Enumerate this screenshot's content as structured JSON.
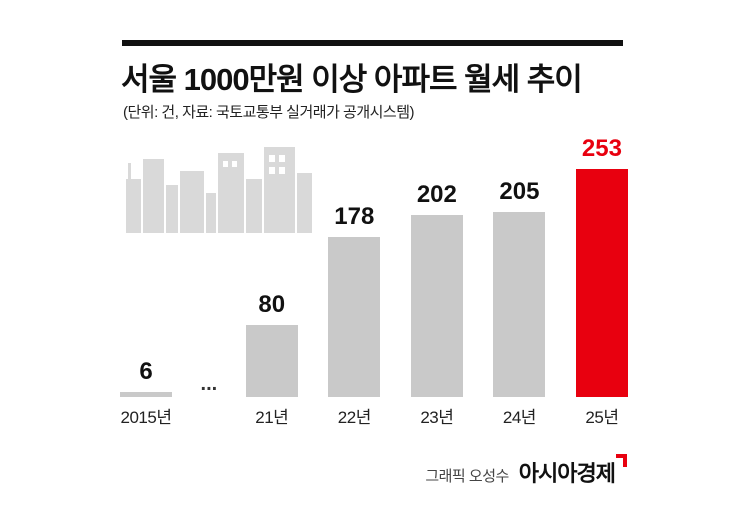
{
  "header": {
    "title": "서울 1000만원 이상 아파트 월세 추이",
    "subtitle": "(단위: 건, 자료: 국토교통부 실거래가 공개시스템)"
  },
  "footer": {
    "credit": "그래픽 오성수",
    "brand": "아시아경제"
  },
  "colors": {
    "bar": "#c9c9c9",
    "highlight": "#e8000f",
    "skyline": "#d9d9d9"
  },
  "chart_data": {
    "type": "bar",
    "title": "서울 1000만원 이상 아파트 월세 추이",
    "subtitle": "(단위: 건, 자료: 국토교통부 실거래가 공개시스템)",
    "categories": [
      "2015년",
      "21년",
      "22년",
      "23년",
      "24년",
      "25년"
    ],
    "values": [
      6,
      80,
      178,
      202,
      205,
      253
    ],
    "unit": "건",
    "highlight_index": 5,
    "axis_break_label": "...",
    "axis_break_after_index": 0,
    "ylim": [
      0,
      253
    ],
    "grid": false,
    "legend": "none",
    "value_labels": "above-bars"
  }
}
